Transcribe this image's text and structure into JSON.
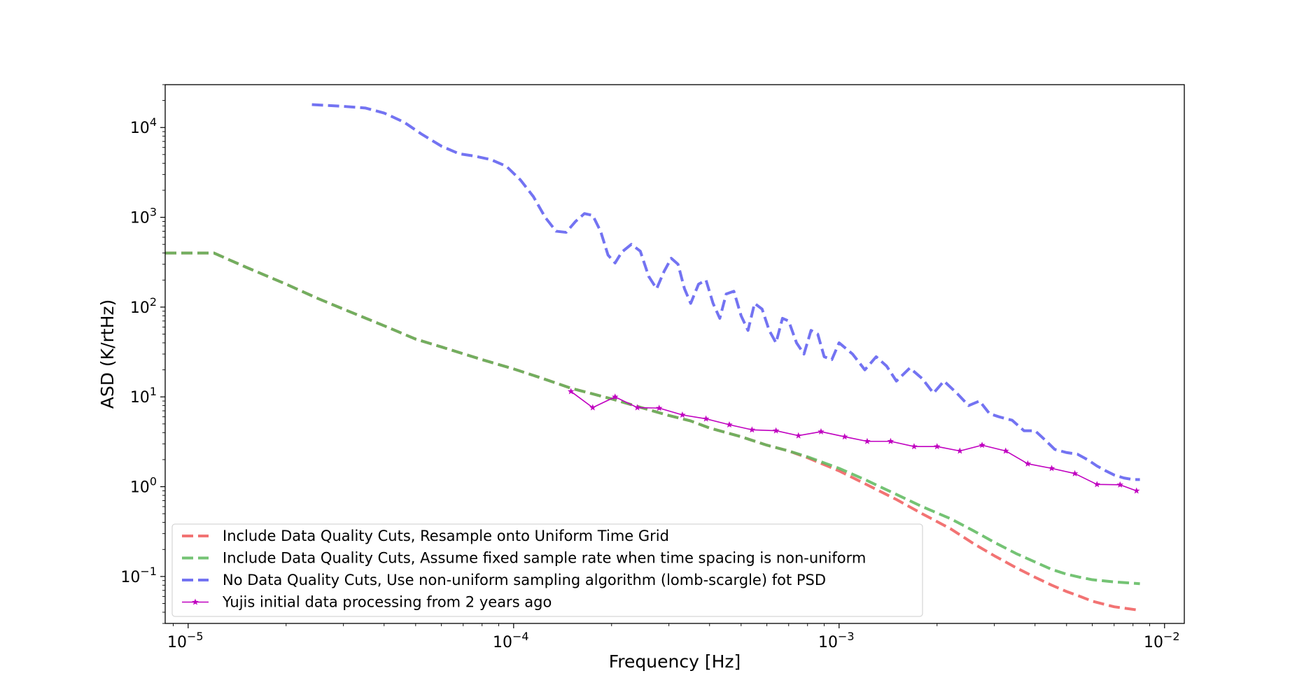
{
  "chart_data": {
    "type": "line",
    "xlabel": "Frequency [Hz]",
    "ylabel": "ASD (K/rtHz)",
    "x_scale": "log",
    "y_scale": "log",
    "xlim": [
      8.5e-06,
      0.0115
    ],
    "ylim": [
      0.03,
      30000
    ],
    "grid": false,
    "legend_position": "lower-left",
    "x_ticks": [
      {
        "value": 1e-05,
        "base": "10",
        "exp": "−5"
      },
      {
        "value": 0.0001,
        "base": "10",
        "exp": "−4"
      },
      {
        "value": 0.001,
        "base": "10",
        "exp": "−3"
      },
      {
        "value": 0.01,
        "base": "10",
        "exp": "−2"
      }
    ],
    "y_ticks": [
      {
        "value": 0.1,
        "base": "10",
        "exp": "−1"
      },
      {
        "value": 1,
        "base": "10",
        "exp": "0"
      },
      {
        "value": 10,
        "base": "10",
        "exp": "1"
      },
      {
        "value": 100,
        "base": "10",
        "exp": "2"
      },
      {
        "value": 1000,
        "base": "10",
        "exp": "3"
      },
      {
        "value": 10000,
        "base": "10",
        "exp": "4"
      }
    ],
    "series": [
      {
        "name": "Include Data Quality Cuts, Resample onto Uniform Time Grid",
        "color": "#f05b5b",
        "style": "dashed",
        "x": [
          8.5e-06,
          1.2e-05,
          1.5e-05,
          2e-05,
          2.5e-05,
          3e-05,
          4e-05,
          5e-05,
          6e-05,
          8e-05,
          0.0001,
          0.00012,
          0.00015,
          0.0002,
          0.00025,
          0.0003,
          0.00035,
          0.0004,
          0.0005,
          0.0006,
          0.0007,
          0.0008,
          0.001,
          0.0012,
          0.0015,
          0.0018,
          0.0022,
          0.0026,
          0.003,
          0.0035,
          0.004,
          0.0045,
          0.005,
          0.0055,
          0.006,
          0.007,
          0.0084
        ],
        "y": [
          400,
          400,
          280,
          180,
          125,
          95,
          62,
          44,
          36,
          26,
          20.5,
          16.5,
          12.5,
          9.5,
          7.5,
          6.2,
          5.4,
          4.5,
          3.6,
          2.9,
          2.5,
          2.1,
          1.5,
          1.08,
          0.72,
          0.5,
          0.34,
          0.23,
          0.17,
          0.125,
          0.098,
          0.08,
          0.068,
          0.06,
          0.053,
          0.046,
          0.042
        ]
      },
      {
        "name": "Include Data Quality Cuts, Assume fixed sample rate when time spacing is non-uniform",
        "color": "#5cb85c",
        "style": "dashed",
        "x": [
          8.5e-06,
          1.2e-05,
          1.5e-05,
          2e-05,
          2.5e-05,
          3e-05,
          4e-05,
          5e-05,
          6e-05,
          8e-05,
          0.0001,
          0.00012,
          0.00015,
          0.0002,
          0.00025,
          0.0003,
          0.00035,
          0.0004,
          0.0005,
          0.0006,
          0.0007,
          0.0008,
          0.001,
          0.0012,
          0.0015,
          0.0018,
          0.0022,
          0.0026,
          0.003,
          0.0035,
          0.004,
          0.0045,
          0.005,
          0.0055,
          0.006,
          0.007,
          0.0084
        ],
        "y": [
          400,
          400,
          280,
          180,
          125,
          95,
          62,
          44,
          36,
          26,
          20.5,
          16.5,
          12.5,
          9.5,
          7.5,
          6.2,
          5.4,
          4.5,
          3.6,
          2.9,
          2.5,
          2.15,
          1.6,
          1.2,
          0.82,
          0.6,
          0.44,
          0.32,
          0.24,
          0.18,
          0.145,
          0.12,
          0.106,
          0.098,
          0.092,
          0.087,
          0.083
        ]
      },
      {
        "name": "No Data Quality Cuts, Use non-uniform sampling algorithm (lomb-scargle) fot PSD",
        "color": "#5b5bf0",
        "style": "dashed",
        "x": [
          2.4e-05,
          3e-05,
          3.5e-05,
          4e-05,
          4.6e-05,
          5.2e-05,
          6e-05,
          6.8e-05,
          7.6e-05,
          8.5e-05,
          9.5e-05,
          0.000105,
          0.000115,
          0.000125,
          0.000135,
          0.000145,
          0.000155,
          0.000165,
          0.000175,
          0.000185,
          0.000195,
          0.000205,
          0.000215,
          0.00023,
          0.000245,
          0.00026,
          0.000275,
          0.00029,
          0.000305,
          0.00032,
          0.000335,
          0.00035,
          0.00037,
          0.00039,
          0.00041,
          0.00043,
          0.00045,
          0.000475,
          0.0005,
          0.000525,
          0.00055,
          0.00058,
          0.00061,
          0.00064,
          0.00067,
          0.0007,
          0.00074,
          0.00078,
          0.00082,
          0.00086,
          0.0009,
          0.00095,
          0.001,
          0.0011,
          0.0012,
          0.0013,
          0.0014,
          0.0015,
          0.00165,
          0.0018,
          0.00195,
          0.0021,
          0.0023,
          0.0025,
          0.0027,
          0.0029,
          0.0031,
          0.0034,
          0.0037,
          0.004,
          0.0043,
          0.0046,
          0.005,
          0.0054,
          0.0058,
          0.0062,
          0.0066,
          0.007,
          0.0075,
          0.008,
          0.0084
        ],
        "y": [
          18000,
          17200,
          16500,
          14500,
          11500,
          8500,
          6200,
          5100,
          4800,
          4400,
          3700,
          2600,
          1700,
          1000,
          700,
          680,
          900,
          1100,
          1050,
          700,
          380,
          310,
          410,
          500,
          420,
          220,
          160,
          250,
          350,
          300,
          160,
          110,
          180,
          200,
          110,
          75,
          140,
          150,
          80,
          55,
          110,
          95,
          55,
          40,
          75,
          70,
          40,
          30,
          55,
          50,
          28,
          26,
          40,
          30,
          20,
          28,
          22,
          15,
          21,
          16,
          11,
          15,
          11,
          8,
          9,
          6.5,
          6,
          5.5,
          4.2,
          4.2,
          3.3,
          2.6,
          2.4,
          2.3,
          2,
          1.7,
          1.5,
          1.35,
          1.25,
          1.2,
          1.2
        ]
      },
      {
        "name": "Yujis initial data processing from 2 years ago",
        "color": "#c000c0",
        "style": "solid-star",
        "x": [
          0.00015,
          0.000175,
          0.000205,
          0.00024,
          0.00028,
          0.00033,
          0.00039,
          0.00046,
          0.00054,
          0.00064,
          0.00075,
          0.00088,
          0.00104,
          0.00122,
          0.00144,
          0.0017,
          0.002,
          0.00235,
          0.00275,
          0.00325,
          0.0038,
          0.0045,
          0.0053,
          0.0062,
          0.0073,
          0.0082
        ],
        "y": [
          11.5,
          7.6,
          10,
          7.6,
          7.5,
          6.3,
          5.7,
          4.9,
          4.3,
          4.2,
          3.7,
          4.1,
          3.6,
          3.2,
          3.2,
          2.8,
          2.8,
          2.5,
          2.9,
          2.5,
          1.8,
          1.6,
          1.4,
          1.06,
          1.05,
          0.9
        ]
      }
    ]
  }
}
